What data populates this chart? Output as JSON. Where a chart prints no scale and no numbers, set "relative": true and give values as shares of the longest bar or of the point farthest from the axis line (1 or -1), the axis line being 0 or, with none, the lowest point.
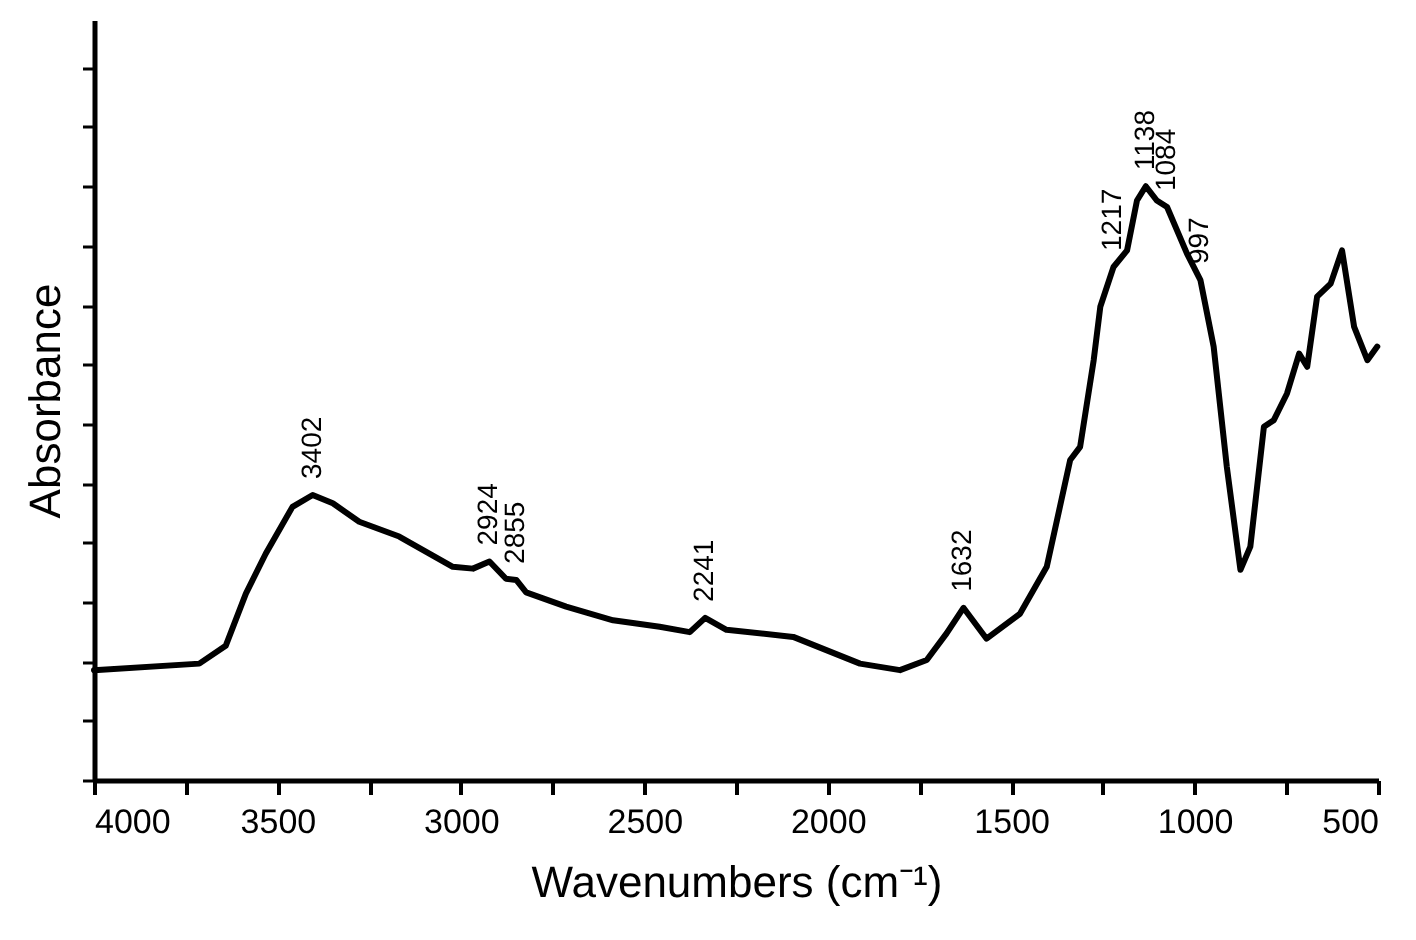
{
  "chart_data": {
    "type": "line",
    "relative": true,
    "xlabel": "Wavenumbers (cm⁻¹)",
    "ylabel": "Absorbance",
    "xlim": [
      4000,
      500
    ],
    "xticks": [
      4000,
      {
        "value": 3750,
        "label": null
      },
      3500,
      {
        "value": 3250,
        "label": null
      },
      3000,
      {
        "value": 2750,
        "label": null
      },
      2500,
      {
        "value": 2250,
        "label": null
      },
      2000,
      {
        "value": 1750,
        "label": null
      },
      1500,
      {
        "value": 1250,
        "label": null
      },
      1000,
      {
        "value": 750,
        "label": null
      },
      500
    ],
    "grid": false,
    "marker": "none",
    "line_style": "solid",
    "series": [
      {
        "color": "#000000",
        "x": [
          4000,
          3713,
          3641,
          3586,
          3532,
          3459,
          3404,
          3349,
          3277,
          3168,
          3022,
          2967,
          2922,
          2877,
          2849,
          2822,
          2713,
          2585,
          2458,
          2376,
          2334,
          2276,
          2094,
          1912,
          1803,
          1730,
          1676,
          1630,
          1567,
          1476,
          1403,
          1339,
          1312,
          1275,
          1257,
          1221,
          1184,
          1157,
          1133,
          1103,
          1075,
          1021,
          984,
          948,
          912,
          875,
          848,
          811,
          784,
          748,
          715,
          693,
          666,
          629,
          598,
          565,
          529,
          502
        ],
        "values": [
          0.185,
          0.196,
          0.226,
          0.314,
          0.381,
          0.46,
          0.48,
          0.466,
          0.435,
          0.41,
          0.359,
          0.356,
          0.368,
          0.339,
          0.337,
          0.316,
          0.292,
          0.269,
          0.258,
          0.249,
          0.273,
          0.253,
          0.241,
          0.196,
          0.185,
          0.202,
          0.247,
          0.29,
          0.238,
          0.28,
          0.359,
          0.539,
          0.561,
          0.707,
          0.797,
          0.864,
          0.892,
          0.976,
          1.0,
          0.976,
          0.965,
          0.887,
          0.842,
          0.73,
          0.527,
          0.354,
          0.393,
          0.595,
          0.606,
          0.651,
          0.718,
          0.696,
          0.814,
          0.836,
          0.892,
          0.763,
          0.707,
          0.73
        ]
      }
    ],
    "annotations": [
      {
        "text": "3402",
        "x": 3404,
        "y": 0.48
      },
      {
        "text": "2924",
        "x": 2922,
        "y": 0.368
      },
      {
        "text": "2855",
        "x": 2849,
        "y": 0.337
      },
      {
        "text": "2241",
        "x": 2334,
        "y": 0.273
      },
      {
        "text": "1632",
        "x": 1630,
        "y": 0.29
      },
      {
        "text": "1217",
        "x": 1221,
        "y": 0.864
      },
      {
        "text": "1138",
        "x": 1133,
        "y": 1.0
      },
      {
        "text": "1084",
        "x": 1075,
        "y": 0.965
      },
      {
        "text": "997",
        "x": 984,
        "y": 0.842
      }
    ]
  }
}
